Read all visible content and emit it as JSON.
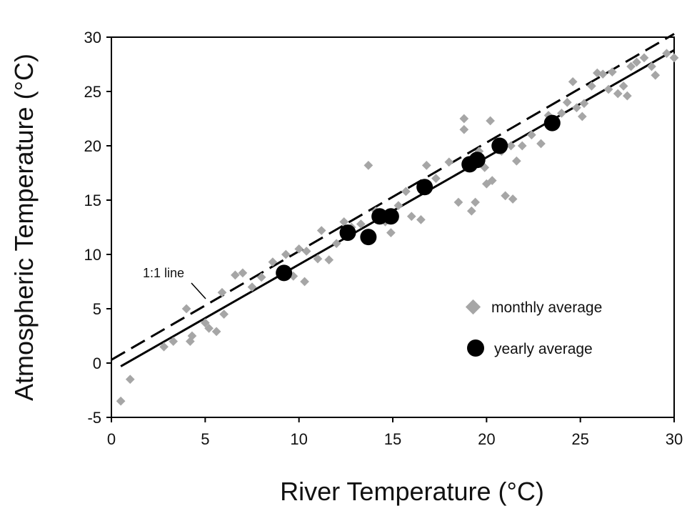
{
  "chart_data": {
    "type": "scatter",
    "xlabel": "River Temperature (°C)",
    "ylabel": "Atmospheric Temperature (°C)",
    "xlim": [
      0,
      30
    ],
    "ylim": [
      -5,
      30
    ],
    "xticks": [
      "0",
      "5",
      "10",
      "15",
      "20",
      "25",
      "30"
    ],
    "yticks": [
      "-5",
      "0",
      "5",
      "10",
      "15",
      "20",
      "25",
      "30"
    ],
    "grid": false,
    "legend_position": "lower-right",
    "colors": {
      "monthly": "#a6a6a6",
      "yearly": "#000000",
      "lines": "#000000"
    },
    "series": [
      {
        "name": "monthly average",
        "marker": "diamond",
        "points": [
          [
            0.5,
            -3.5
          ],
          [
            1.0,
            -1.5
          ],
          [
            2.8,
            1.5
          ],
          [
            3.3,
            2.0
          ],
          [
            4.0,
            5.0
          ],
          [
            4.2,
            2.0
          ],
          [
            4.3,
            2.5
          ],
          [
            5.0,
            3.7
          ],
          [
            5.2,
            3.2
          ],
          [
            5.6,
            2.9
          ],
          [
            5.9,
            6.5
          ],
          [
            6.0,
            4.5
          ],
          [
            6.6,
            8.1
          ],
          [
            7.0,
            8.3
          ],
          [
            7.5,
            7.0
          ],
          [
            8.0,
            7.9
          ],
          [
            8.6,
            9.3
          ],
          [
            9.3,
            10.0
          ],
          [
            9.7,
            8.0
          ],
          [
            10.0,
            10.5
          ],
          [
            10.3,
            7.5
          ],
          [
            10.4,
            10.3
          ],
          [
            11.0,
            9.6
          ],
          [
            11.2,
            12.2
          ],
          [
            11.6,
            9.5
          ],
          [
            12.0,
            11.0
          ],
          [
            12.4,
            13.0
          ],
          [
            12.8,
            12.5
          ],
          [
            13.3,
            12.8
          ],
          [
            13.7,
            18.2
          ],
          [
            14.1,
            14.0
          ],
          [
            14.6,
            13.0
          ],
          [
            14.9,
            12.0
          ],
          [
            15.3,
            14.5
          ],
          [
            15.7,
            15.8
          ],
          [
            16.0,
            13.5
          ],
          [
            16.5,
            13.2
          ],
          [
            16.8,
            18.2
          ],
          [
            17.3,
            17.0
          ],
          [
            18.0,
            18.5
          ],
          [
            18.5,
            14.8
          ],
          [
            18.8,
            22.5
          ],
          [
            18.8,
            21.5
          ],
          [
            19.2,
            14.0
          ],
          [
            19.4,
            14.8
          ],
          [
            19.6,
            19.5
          ],
          [
            19.9,
            18.0
          ],
          [
            20.0,
            16.5
          ],
          [
            20.2,
            22.3
          ],
          [
            20.3,
            16.8
          ],
          [
            20.8,
            19.5
          ],
          [
            21.0,
            15.4
          ],
          [
            21.3,
            20.0
          ],
          [
            21.4,
            15.1
          ],
          [
            21.6,
            18.6
          ],
          [
            21.9,
            20.0
          ],
          [
            22.4,
            21.0
          ],
          [
            22.9,
            20.2
          ],
          [
            23.3,
            22.8
          ],
          [
            23.6,
            21.8
          ],
          [
            24.0,
            23.0
          ],
          [
            24.3,
            24.0
          ],
          [
            24.6,
            25.9
          ],
          [
            24.8,
            23.5
          ],
          [
            25.1,
            22.7
          ],
          [
            25.2,
            23.9
          ],
          [
            25.6,
            25.5
          ],
          [
            25.9,
            26.7
          ],
          [
            26.2,
            26.6
          ],
          [
            26.5,
            25.2
          ],
          [
            26.7,
            26.8
          ],
          [
            27.0,
            24.8
          ],
          [
            27.3,
            25.5
          ],
          [
            27.5,
            24.6
          ],
          [
            27.7,
            27.3
          ],
          [
            28.0,
            27.7
          ],
          [
            28.4,
            28.1
          ],
          [
            28.8,
            27.3
          ],
          [
            29.0,
            26.5
          ],
          [
            29.6,
            28.5
          ],
          [
            30.0,
            28.1
          ]
        ]
      },
      {
        "name": "yearly average",
        "marker": "circle",
        "points": [
          [
            9.2,
            8.3
          ],
          [
            12.6,
            12.0
          ],
          [
            13.7,
            11.6
          ],
          [
            14.3,
            13.5
          ],
          [
            14.9,
            13.5
          ],
          [
            16.7,
            16.2
          ],
          [
            19.1,
            18.3
          ],
          [
            19.5,
            18.7
          ],
          [
            20.7,
            20.0
          ],
          [
            23.5,
            22.1
          ]
        ]
      }
    ],
    "lines": [
      {
        "label": "1:1 line",
        "style": "dashed",
        "from": [
          0,
          0.3
        ],
        "to": [
          30,
          30.3
        ]
      },
      {
        "label": "",
        "style": "solid",
        "from": [
          0.5,
          -0.3
        ],
        "to": [
          30,
          28.8
        ]
      }
    ]
  }
}
